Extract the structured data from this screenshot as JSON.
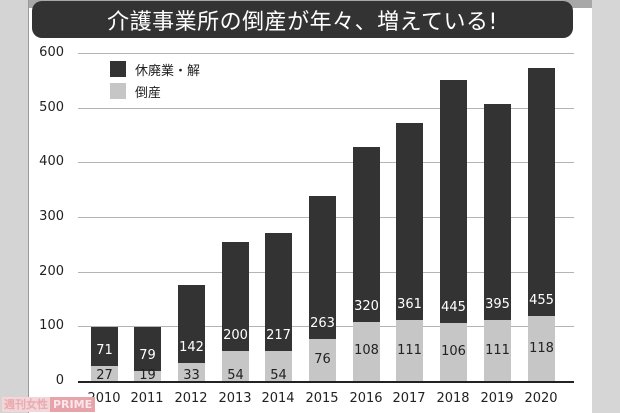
{
  "title": "介護事業所の倒産が年々、増えている!",
  "legend": [
    {
      "label": "休廃業・解",
      "color": "#333333"
    },
    {
      "label": "倒産",
      "color": "#c6c6c6"
    }
  ],
  "watermark": {
    "part1": "週刊女性",
    "part2": "PRIME"
  },
  "y_ticks": [
    "600",
    "500",
    "400",
    "300",
    "200",
    "100",
    "0"
  ],
  "x_ticks": [
    "2010",
    "2011",
    "2012",
    "2013",
    "2014",
    "2015",
    "2016",
    "2017",
    "2018",
    "2019",
    "2020"
  ],
  "bars": [
    {
      "year": "2010",
      "closure": "71",
      "bankruptcy": "27"
    },
    {
      "year": "2011",
      "closure": "79",
      "bankruptcy": "19"
    },
    {
      "year": "2012",
      "closure": "142",
      "bankruptcy": "33"
    },
    {
      "year": "2013",
      "closure": "200",
      "bankruptcy": "54"
    },
    {
      "year": "2014",
      "closure": "217",
      "bankruptcy": "54"
    },
    {
      "year": "2015",
      "closure": "263",
      "bankruptcy": "76"
    },
    {
      "year": "2016",
      "closure": "320",
      "bankruptcy": "108"
    },
    {
      "year": "2017",
      "closure": "361",
      "bankruptcy": "111"
    },
    {
      "year": "2018",
      "closure": "445",
      "bankruptcy": "106"
    },
    {
      "year": "2019",
      "closure": "395",
      "bankruptcy": "111"
    },
    {
      "year": "2020",
      "closure": "455",
      "bankruptcy": "118"
    }
  ],
  "chart_data": {
    "type": "bar",
    "stacked": true,
    "title": "介護事業所の倒産が年々、増えている!",
    "categories": [
      "2010",
      "2011",
      "2012",
      "2013",
      "2014",
      "2015",
      "2016",
      "2017",
      "2018",
      "2019",
      "2020"
    ],
    "series": [
      {
        "name": "倒産",
        "color": "#c6c6c6",
        "values": [
          27,
          19,
          33,
          54,
          54,
          76,
          108,
          111,
          106,
          111,
          118
        ]
      },
      {
        "name": "休廃業・解",
        "color": "#333333",
        "values": [
          71,
          79,
          142,
          200,
          217,
          263,
          320,
          361,
          445,
          395,
          455
        ]
      }
    ],
    "xlabel": "",
    "ylabel": "",
    "ylim": [
      0,
      600
    ],
    "yticks": [
      0,
      100,
      200,
      300,
      400,
      500,
      600
    ],
    "grid": true,
    "legend_position": "upper-left"
  }
}
